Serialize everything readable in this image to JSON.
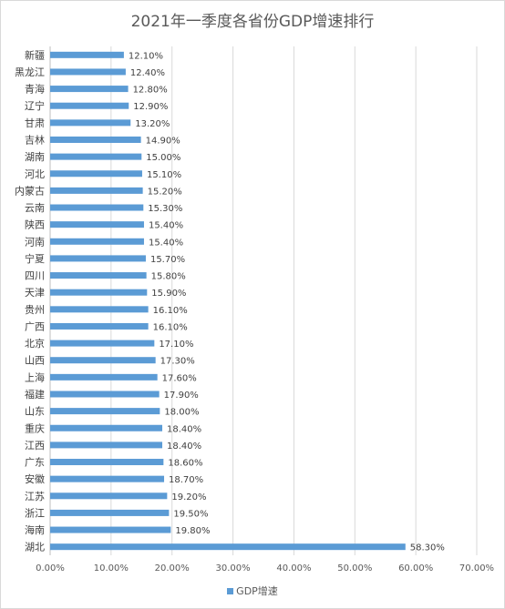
{
  "chart_data": {
    "type": "bar",
    "orientation": "horizontal",
    "title": "2021年一季度各省份GDP增速排行",
    "categories": [
      "新疆",
      "黑龙江",
      "青海",
      "辽宁",
      "甘肃",
      "吉林",
      "湖南",
      "河北",
      "内蒙古",
      "云南",
      "陕西",
      "河南",
      "宁夏",
      "四川",
      "天津",
      "贵州",
      "广西",
      "北京",
      "山西",
      "上海",
      "福建",
      "山东",
      "重庆",
      "江西",
      "广东",
      "安徽",
      "江苏",
      "浙江",
      "海南",
      "湖北"
    ],
    "series": [
      {
        "name": "GDP增速",
        "values": [
          12.1,
          12.4,
          12.8,
          12.9,
          13.2,
          14.9,
          15.0,
          15.1,
          15.2,
          15.3,
          15.4,
          15.4,
          15.7,
          15.8,
          15.9,
          16.1,
          16.1,
          17.1,
          17.3,
          17.6,
          17.9,
          18.0,
          18.4,
          18.4,
          18.6,
          18.7,
          19.2,
          19.5,
          19.8,
          58.3
        ],
        "labels": [
          "12.10%",
          "12.40%",
          "12.80%",
          "12.90%",
          "13.20%",
          "14.90%",
          "15.00%",
          "15.10%",
          "15.20%",
          "15.30%",
          "15.40%",
          "15.40%",
          "15.70%",
          "15.80%",
          "15.90%",
          "16.10%",
          "16.10%",
          "17.10%",
          "17.30%",
          "17.60%",
          "17.90%",
          "18.00%",
          "18.40%",
          "18.40%",
          "18.60%",
          "18.70%",
          "19.20%",
          "19.50%",
          "19.80%",
          "58.30%"
        ]
      }
    ],
    "xlim": [
      0,
      70
    ],
    "xticks": [
      "0.00%",
      "10.00%",
      "20.00%",
      "30.00%",
      "40.00%",
      "50.00%",
      "60.00%",
      "70.00%"
    ],
    "grid": true,
    "legend_position": "bottom",
    "color": "#5b9bd5"
  }
}
